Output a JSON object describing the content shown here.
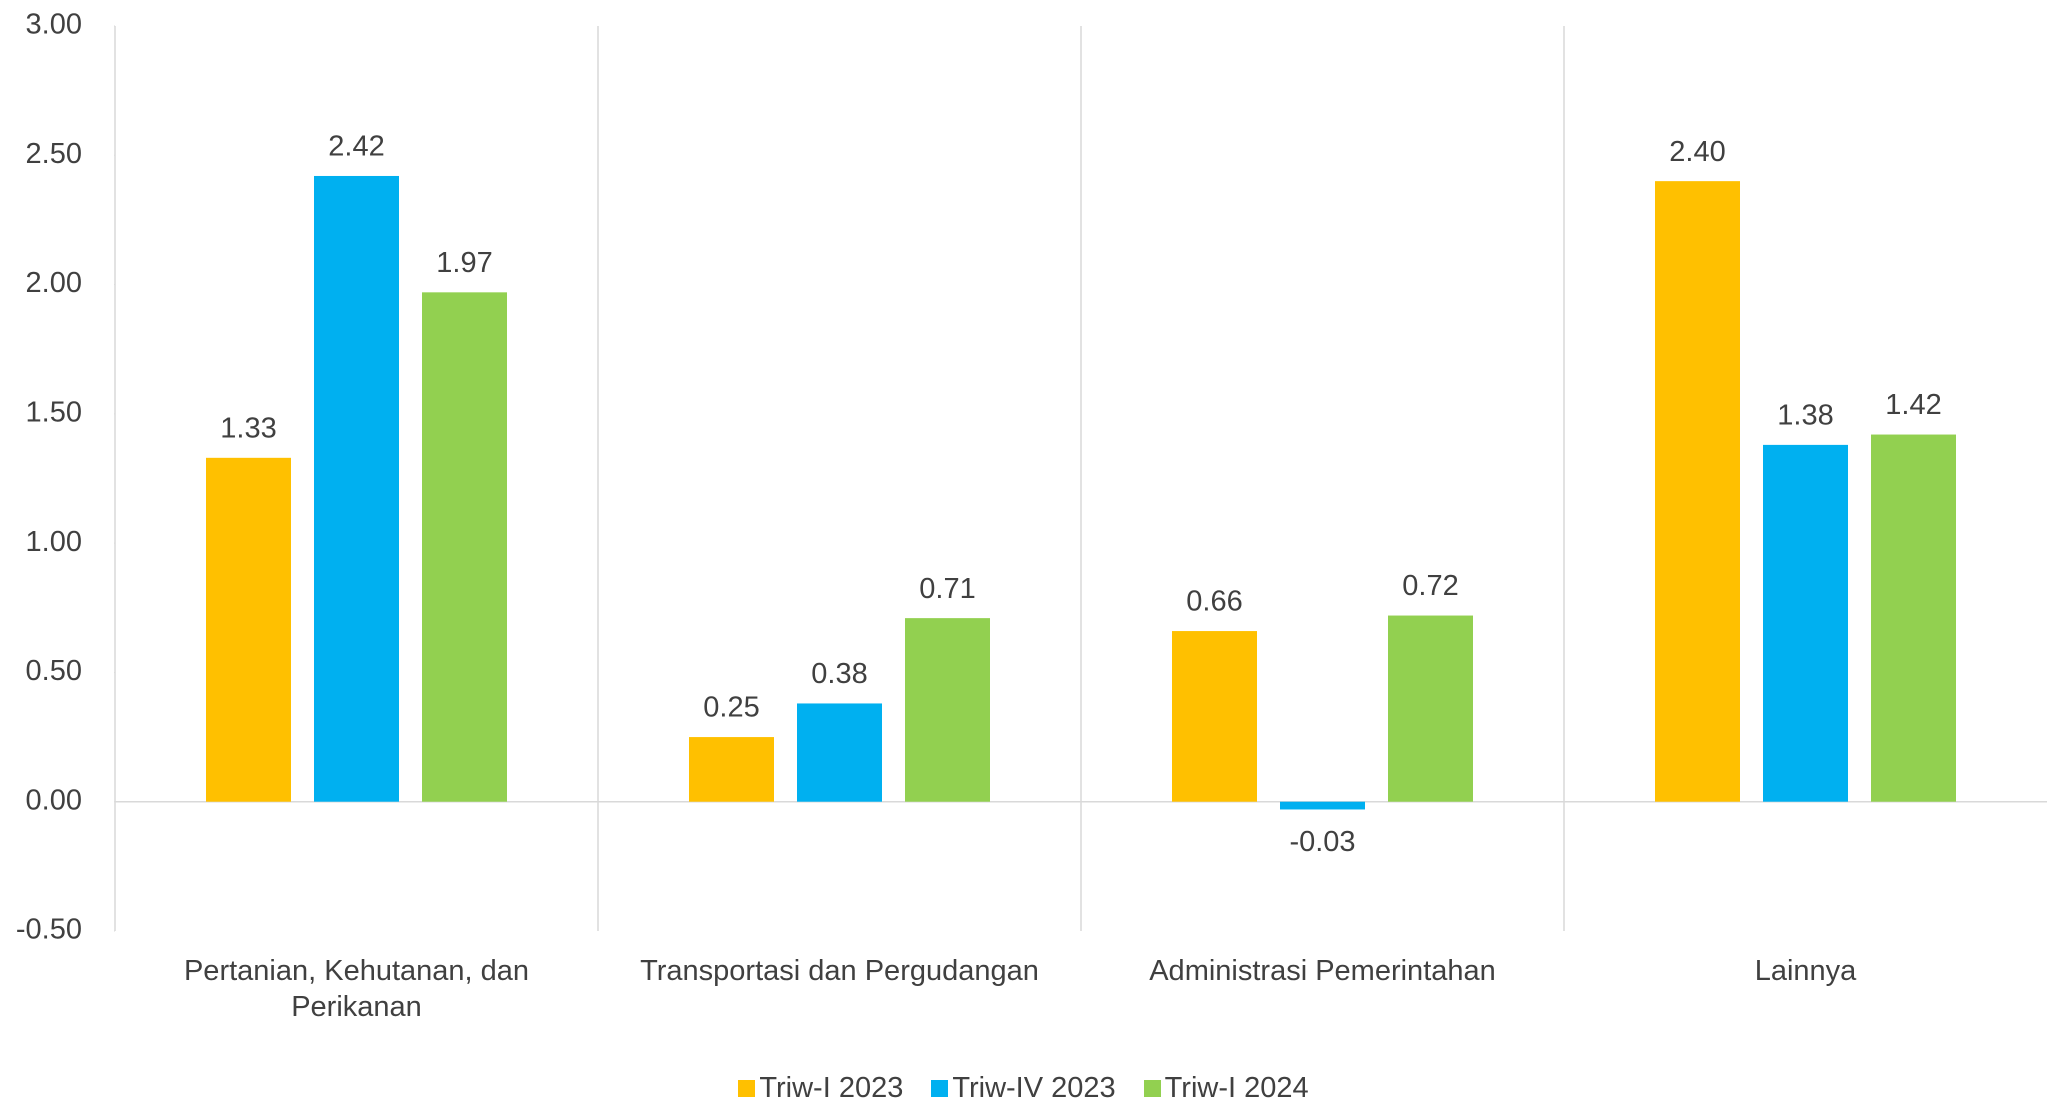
{
  "chart_data": {
    "type": "bar",
    "categories": [
      "Pertanian, Kehutanan, dan Perikanan",
      "Transportasi dan Pergudangan",
      "Administrasi Pemerintahan",
      "Lainnya"
    ],
    "series": [
      {
        "name": "Triw-I 2023",
        "color": "#ffc000",
        "values": [
          1.33,
          0.25,
          0.66,
          2.4
        ],
        "value_labels": [
          "1.33",
          "0.25",
          "0.66",
          "2.40"
        ]
      },
      {
        "name": "Triw-IV 2023",
        "color": "#00b0f0",
        "values": [
          2.42,
          0.38,
          -0.03,
          1.38
        ],
        "value_labels": [
          "2.42",
          "0.38",
          "-0.03",
          "1.38"
        ]
      },
      {
        "name": "Triw-I 2024",
        "color": "#92d050",
        "values": [
          1.97,
          0.71,
          0.72,
          1.42
        ],
        "value_labels": [
          "1.97",
          "0.71",
          "0.72",
          "1.42"
        ]
      }
    ],
    "ylim": [
      -0.5,
      3
    ],
    "yticks": [
      {
        "value": -0.5,
        "label": "-0.50"
      },
      {
        "value": 0,
        "label": "0.00"
      },
      {
        "value": 0.5,
        "label": "0.50"
      },
      {
        "value": 1,
        "label": "1.00"
      },
      {
        "value": 1.5,
        "label": "1.50"
      },
      {
        "value": 2,
        "label": "2.00"
      },
      {
        "value": 2.5,
        "label": "2.50"
      },
      {
        "value": 3,
        "label": "3.00"
      }
    ],
    "legend": "bottom"
  }
}
